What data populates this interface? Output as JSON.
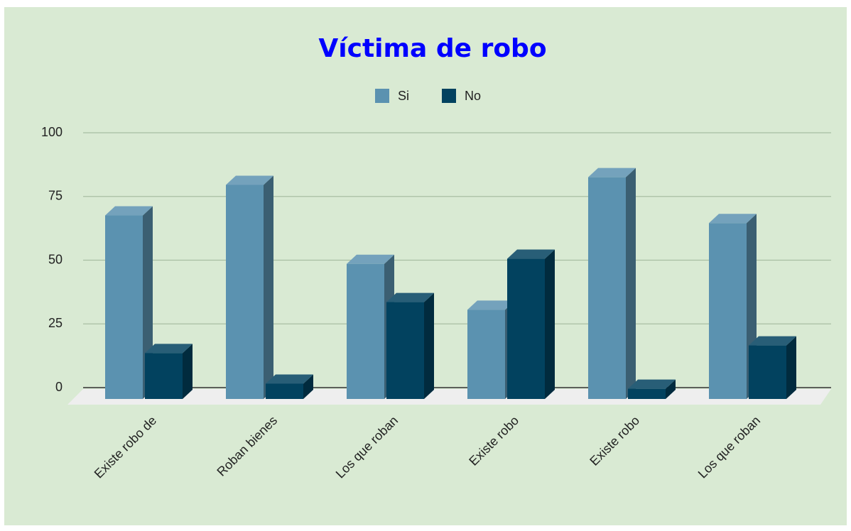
{
  "chart_data": {
    "type": "bar",
    "title": "Víctima de robo",
    "categories": [
      "Existe robo de",
      "Roban bienes",
      "Los que roban",
      "Existe robo",
      "Existe robo",
      "Los que roban"
    ],
    "series": [
      {
        "name": "Si",
        "color": "#5b92b0",
        "values": [
          72,
          84,
          53,
          35,
          87,
          69
        ]
      },
      {
        "name": "No",
        "color": "#02425f",
        "values": [
          18,
          6,
          38,
          55,
          4,
          21
        ]
      }
    ],
    "ylim": [
      0,
      100
    ],
    "yticks": [
      0,
      25,
      50,
      75,
      100
    ],
    "grid": true,
    "legend": "top"
  }
}
